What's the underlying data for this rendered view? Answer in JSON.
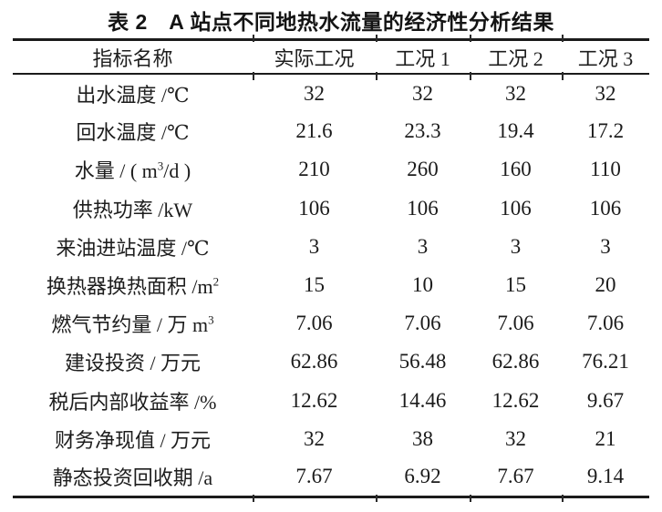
{
  "page": {
    "title": "表 2　A 站点不同地热水流量的经济性分析结果"
  },
  "table": {
    "columns": [
      "指标名称",
      "实际工况",
      "工况 1",
      "工况 2",
      "工况 3"
    ],
    "rows": [
      {
        "label_pre": "出水温度 /℃",
        "label_sup": "",
        "label_post": "",
        "values": [
          "32",
          "32",
          "32",
          "32"
        ]
      },
      {
        "label_pre": "回水温度 /℃",
        "label_sup": "",
        "label_post": "",
        "values": [
          "21.6",
          "23.3",
          "19.4",
          "17.2"
        ]
      },
      {
        "label_pre": "水量 / ( m",
        "label_sup": "3",
        "label_post": "/d )",
        "values": [
          "210",
          "260",
          "160",
          "110"
        ]
      },
      {
        "label_pre": "供热功率 /kW",
        "label_sup": "",
        "label_post": "",
        "values": [
          "106",
          "106",
          "106",
          "106"
        ]
      },
      {
        "label_pre": "来油进站温度 /℃",
        "label_sup": "",
        "label_post": "",
        "values": [
          "3",
          "3",
          "3",
          "3"
        ]
      },
      {
        "label_pre": "换热器换热面积 /m",
        "label_sup": "2",
        "label_post": "",
        "values": [
          "15",
          "10",
          "15",
          "20"
        ]
      },
      {
        "label_pre": "燃气节约量 / 万 m",
        "label_sup": "3",
        "label_post": "",
        "values": [
          "7.06",
          "7.06",
          "7.06",
          "7.06"
        ]
      },
      {
        "label_pre": "建设投资 / 万元",
        "label_sup": "",
        "label_post": "",
        "values": [
          "62.86",
          "56.48",
          "62.86",
          "76.21"
        ]
      },
      {
        "label_pre": "税后内部收益率 /%",
        "label_sup": "",
        "label_post": "",
        "values": [
          "12.62",
          "14.46",
          "12.62",
          "9.67"
        ]
      },
      {
        "label_pre": "财务净现值 / 万元",
        "label_sup": "",
        "label_post": "",
        "values": [
          "32",
          "38",
          "32",
          "21"
        ]
      },
      {
        "label_pre": "静态投资回收期 /a",
        "label_sup": "",
        "label_post": "",
        "values": [
          "7.67",
          "6.92",
          "7.67",
          "9.14"
        ]
      }
    ]
  }
}
